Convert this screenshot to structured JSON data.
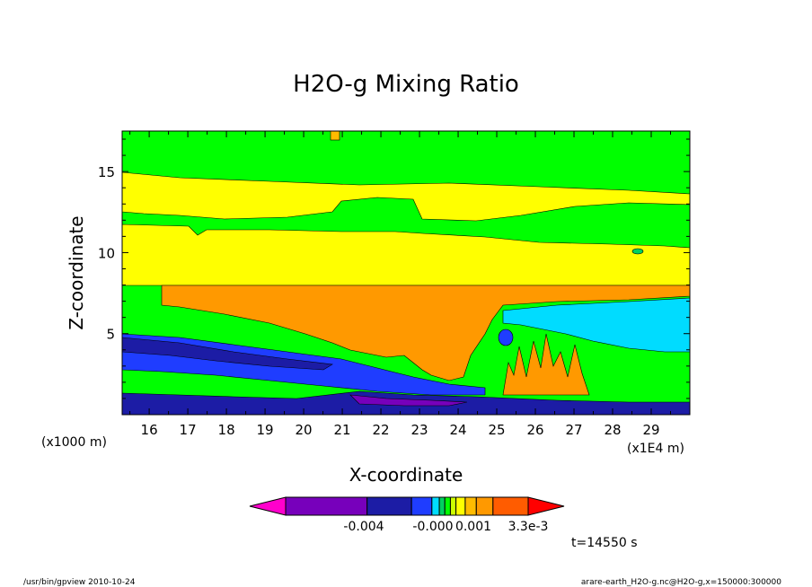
{
  "chart_data": {
    "type": "heatmap",
    "title": "H2O-g Mixing Ratio",
    "xlabel": "X-coordinate",
    "ylabel": "Z-coordinate",
    "x_unit_label": "(x1E4 m)",
    "y_unit_label": "(x1000 m)",
    "xlim": [
      15.3,
      30.0
    ],
    "ylim": [
      0.0,
      17.5
    ],
    "x_ticks": [
      16,
      17,
      18,
      19,
      20,
      21,
      22,
      23,
      24,
      25,
      26,
      27,
      28,
      29
    ],
    "y_ticks": [
      5,
      10,
      15
    ],
    "grid": false,
    "colorbar": {
      "colors": [
        "#ff00cc",
        "#7700bb",
        "#1c1ca5",
        "#1f3dff",
        "#00dcff",
        "#00d060",
        "#00ff00",
        "#ccff00",
        "#ffff00",
        "#ffbb00",
        "#ff9900",
        "#ff5c00",
        "#ff0000"
      ],
      "tick_labels": [
        "-0.004",
        "-0.000",
        "0.001",
        "3.3e-3"
      ]
    },
    "bands": [
      {
        "color": "#00ff00",
        "zb": 17.5,
        "zt": 17.5
      },
      {
        "color": "#00ff00",
        "zb": 15.0,
        "zt": 17.5
      },
      {
        "color": "#ffff00",
        "zb": 12.5,
        "zt": 15.0
      },
      {
        "color": "#00ff00",
        "zb": 11.5,
        "zt": 12.5
      },
      {
        "color": "#ffff00",
        "zb": 8.2,
        "zt": 11.5
      },
      {
        "color": "#ff9900",
        "zb": 6.5,
        "zt": 8.2
      }
    ]
  },
  "annotations": {
    "time": "t=14550 s",
    "footer_left": "/usr/bin/gpview  2010-10-24",
    "footer_right": "arare-earth_H2O-g.nc@H2O-g,x=150000:300000"
  }
}
